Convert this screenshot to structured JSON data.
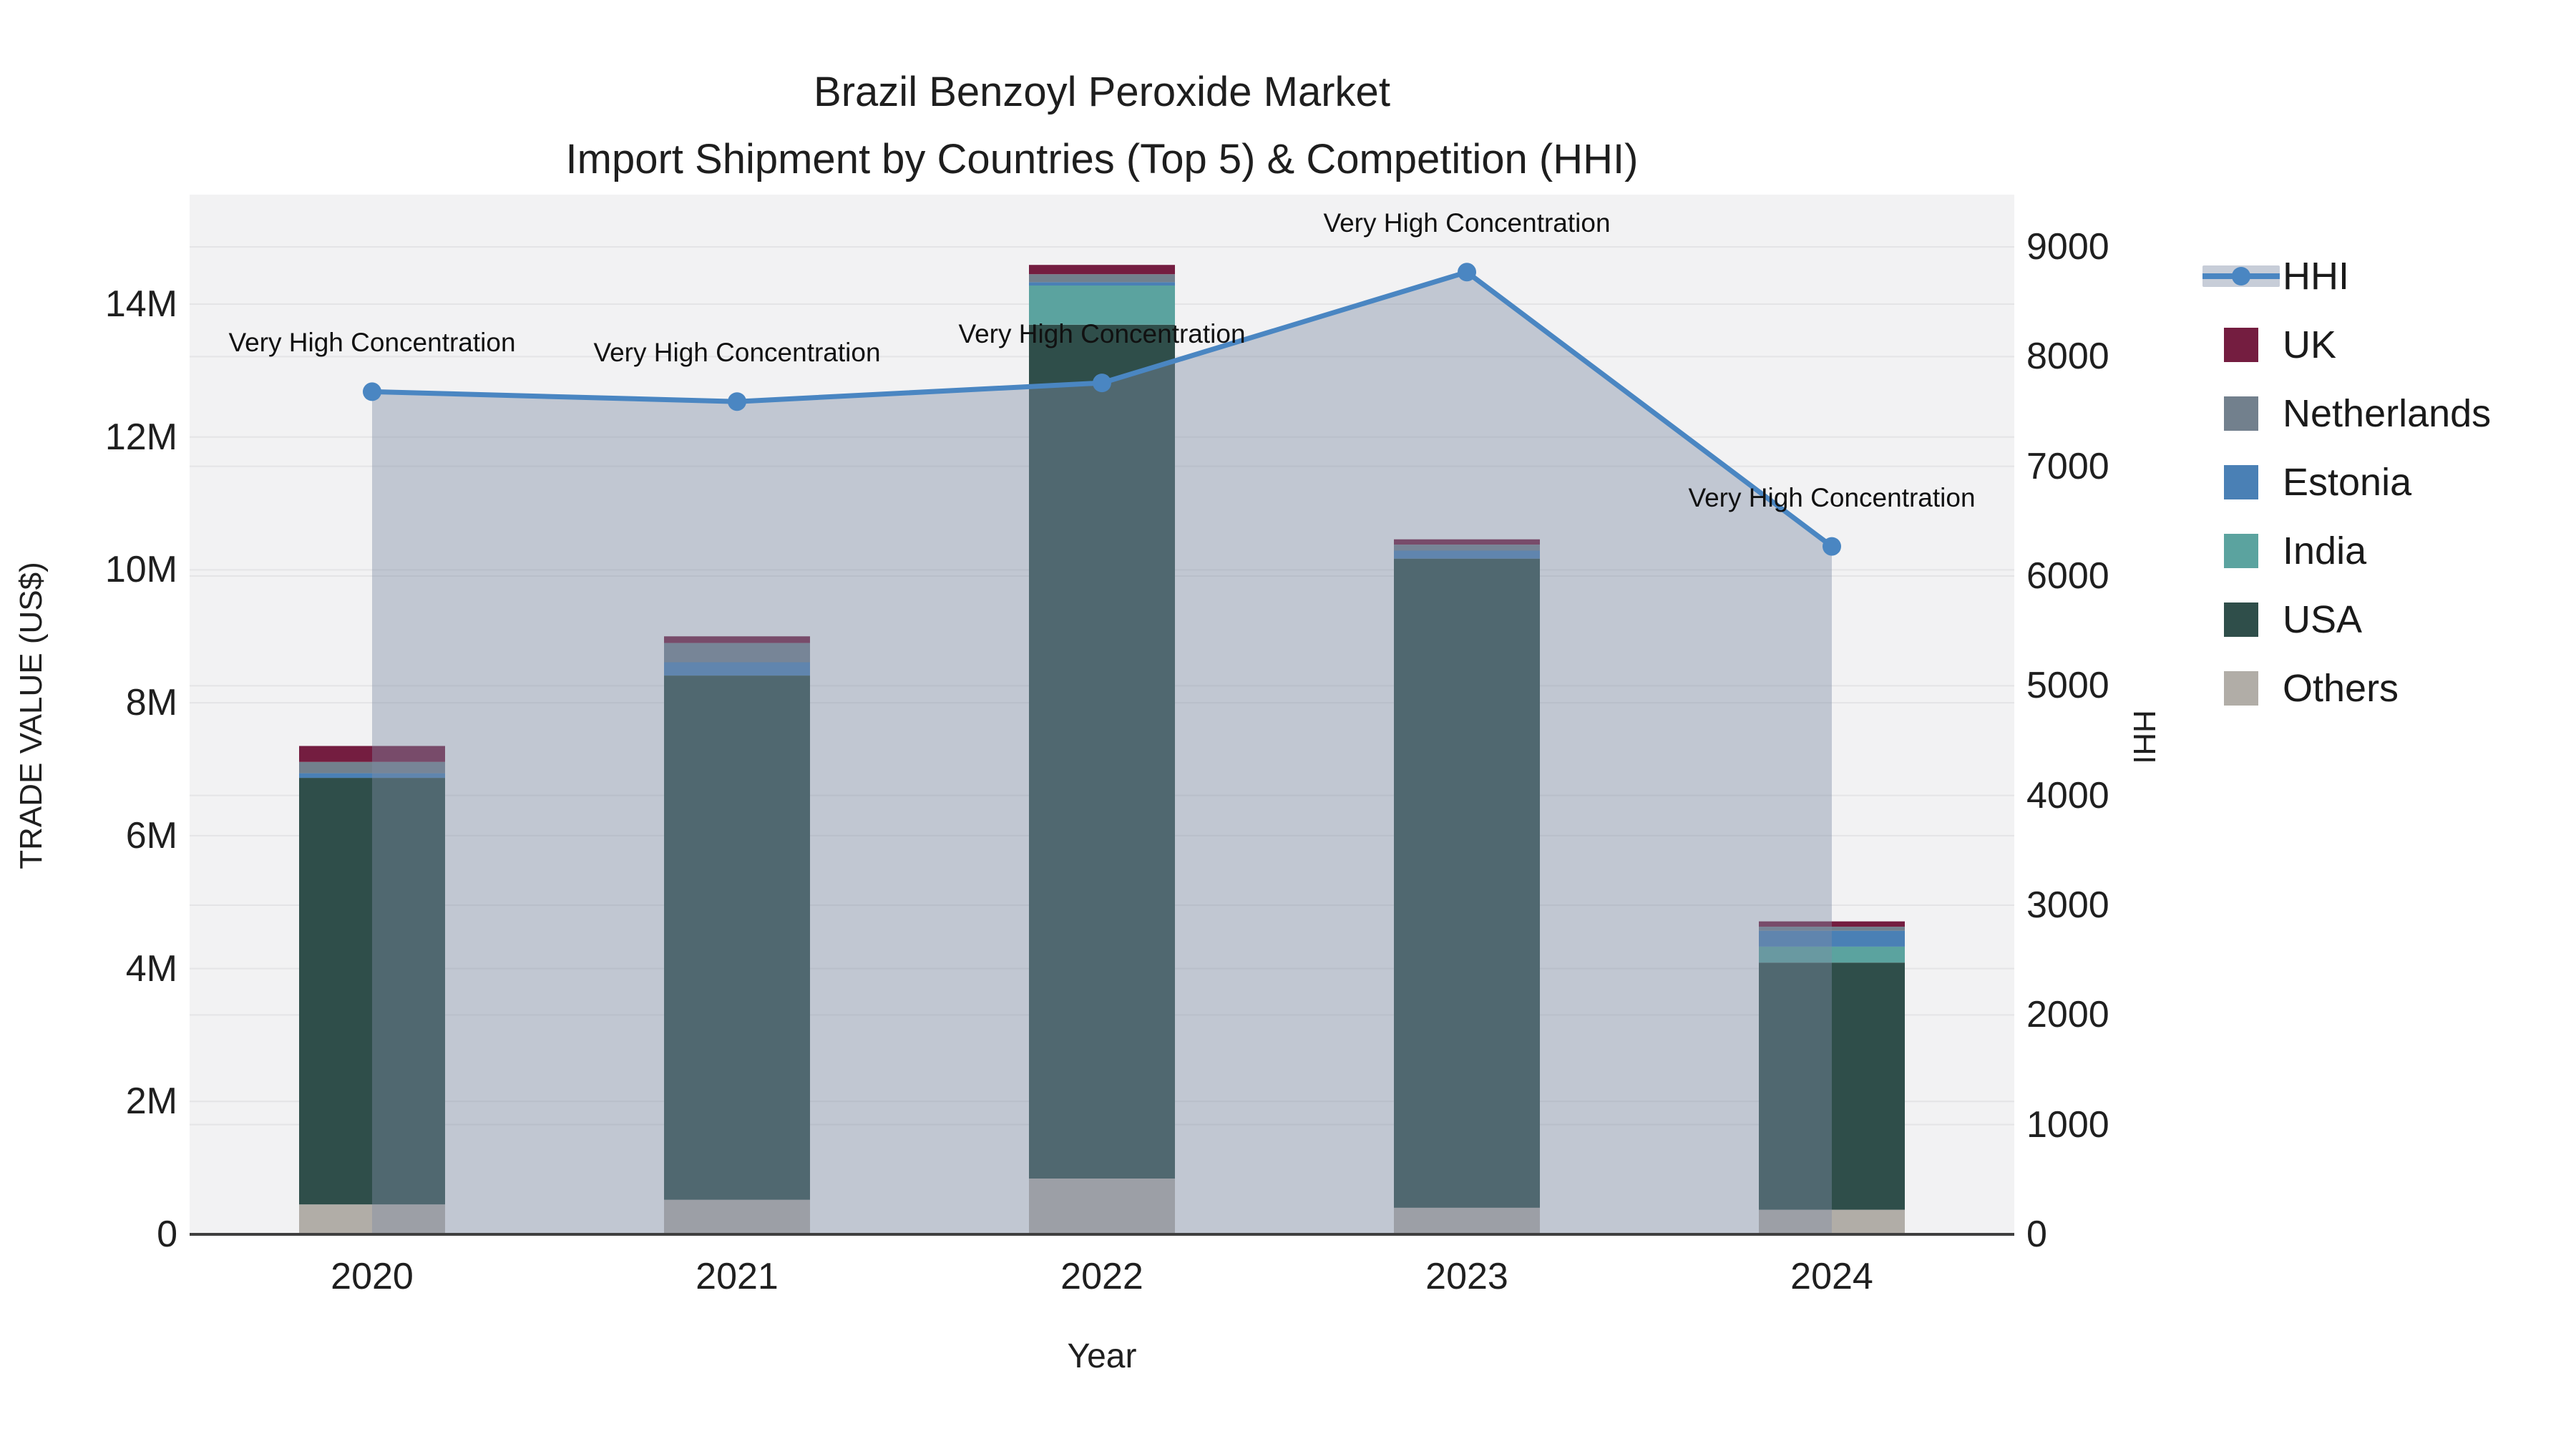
{
  "title": {
    "line1": "Brazil Benzoyl Peroxide Market",
    "line2": "Import Shipment by Countries (Top 5) & Competition (HHI)"
  },
  "axes": {
    "x": {
      "title": "Year",
      "tick_labels": [
        "2020",
        "2021",
        "2022",
        "2023",
        "2024"
      ]
    },
    "y_left": {
      "title": "TRADE VALUE (US$)",
      "tick_labels": [
        "0",
        "2M",
        "4M",
        "6M",
        "8M",
        "10M",
        "12M",
        "14M"
      ],
      "tick_values_millions": [
        0,
        2,
        4,
        6,
        8,
        10,
        12,
        14
      ]
    },
    "y_right": {
      "title": "HHI",
      "tick_labels": [
        "0",
        "1000",
        "2000",
        "3000",
        "4000",
        "5000",
        "6000",
        "7000",
        "8000",
        "9000"
      ],
      "tick_values": [
        0,
        1000,
        2000,
        3000,
        4000,
        5000,
        6000,
        7000,
        8000,
        9000
      ]
    }
  },
  "legend": {
    "items": [
      {
        "label": "HHI",
        "type": "line",
        "color": "#4a86c2"
      },
      {
        "label": "UK",
        "type": "square",
        "color": "#741d40"
      },
      {
        "label": "Netherlands",
        "type": "square",
        "color": "#72808d"
      },
      {
        "label": "Estonia",
        "type": "square",
        "color": "#4a80b5"
      },
      {
        "label": "India",
        "type": "square",
        "color": "#5ba39f"
      },
      {
        "label": "USA",
        "type": "square",
        "color": "#2f4e4a"
      },
      {
        "label": "Others",
        "type": "square",
        "color": "#b1ada7"
      }
    ]
  },
  "colors": {
    "plot_background": "#f2f2f3",
    "gridline": "#e4e4e6",
    "axis_line": "#3f3f3f",
    "hhi_line": "#4a86c2",
    "hhi_area_fill": "rgba(127,140,164,0.42)"
  },
  "chart_data": {
    "type": "combo_stacked_bar_line",
    "title": "Brazil Benzoyl Peroxide Market — Import Shipment by Countries (Top 5) & Competition (HHI)",
    "categories": [
      "2020",
      "2021",
      "2022",
      "2023",
      "2024"
    ],
    "bar_unit": "US$ millions",
    "stack_order_bottom_to_top": [
      "Others",
      "USA",
      "India",
      "Estonia",
      "Netherlands",
      "UK"
    ],
    "series": [
      {
        "name": "Others",
        "color": "#b1ada7",
        "values": [
          0.45,
          0.52,
          0.84,
          0.4,
          0.37
        ]
      },
      {
        "name": "USA",
        "color": "#2f4e4a",
        "values": [
          6.42,
          7.89,
          12.85,
          9.77,
          3.72
        ]
      },
      {
        "name": "India",
        "color": "#5ba39f",
        "values": [
          0.0,
          0.0,
          0.59,
          0.0,
          0.24
        ]
      },
      {
        "name": "Estonia",
        "color": "#4a80b5",
        "values": [
          0.07,
          0.2,
          0.05,
          0.12,
          0.24
        ]
      },
      {
        "name": "Netherlands",
        "color": "#72808d",
        "values": [
          0.17,
          0.29,
          0.12,
          0.09,
          0.06
        ]
      },
      {
        "name": "UK",
        "color": "#741d40",
        "values": [
          0.24,
          0.1,
          0.14,
          0.08,
          0.08
        ]
      }
    ],
    "bar_totals_millions": [
      7.35,
      9.0,
      14.59,
      10.46,
      4.71
    ],
    "line": {
      "name": "HHI",
      "color": "#4a86c2",
      "values": [
        7680,
        7590,
        7760,
        8770,
        6270
      ]
    },
    "annotations": [
      "Very High Concentration",
      "Very High Concentration",
      "Very High Concentration",
      "Very High Concentration",
      "Very High Concentration"
    ],
    "xlabel": "Year",
    "ylabel_left": "TRADE VALUE (US$)",
    "ylabel_right": "HHI",
    "y_left_range_millions": [
      0,
      15.65
    ],
    "y_right_range": [
      0,
      9476
    ],
    "grid": true,
    "legend_position": "right"
  }
}
